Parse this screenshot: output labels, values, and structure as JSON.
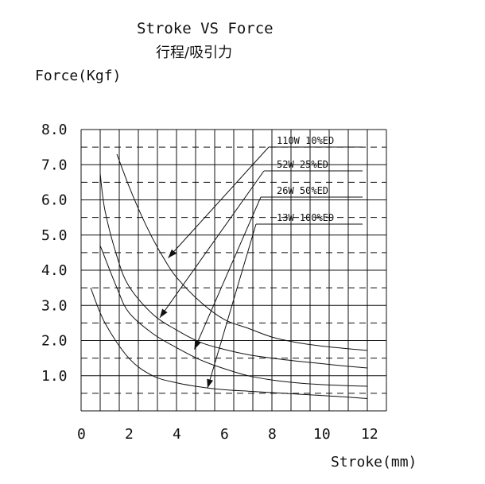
{
  "chart_data": {
    "type": "line",
    "title": "Stroke VS  Force",
    "subtitle": "行程/吸引力",
    "ylabel": "Force(Kgf)",
    "xlabel": "Stroke(mm)",
    "xlim": [
      0,
      12.8
    ],
    "ylim": [
      0,
      8.0
    ],
    "x_ticks": [
      "0",
      "2",
      "4",
      "6",
      "8",
      "10",
      "12"
    ],
    "y_ticks": [
      "8.0",
      "7.0",
      "6.0",
      "5.0",
      "4.0",
      "3.0",
      "2.0",
      "1.0"
    ],
    "grid": true,
    "series": [
      {
        "name": "110W 10%ED",
        "points": [
          [
            1.5,
            7.3
          ],
          [
            2,
            6.4
          ],
          [
            2.5,
            5.6
          ],
          [
            3,
            4.9
          ],
          [
            3.5,
            4.3
          ],
          [
            4,
            3.8
          ],
          [
            5,
            3.1
          ],
          [
            6,
            2.6
          ],
          [
            7,
            2.35
          ],
          [
            8,
            2.1
          ],
          [
            9,
            1.95
          ],
          [
            10,
            1.85
          ],
          [
            11,
            1.78
          ],
          [
            12,
            1.72
          ]
        ]
      },
      {
        "name": "52W 25%ED",
        "points": [
          [
            0.8,
            6.75
          ],
          [
            1,
            5.7
          ],
          [
            1.5,
            4.4
          ],
          [
            2,
            3.55
          ],
          [
            3,
            2.75
          ],
          [
            4,
            2.3
          ],
          [
            5,
            1.95
          ],
          [
            6,
            1.75
          ],
          [
            7,
            1.6
          ],
          [
            8,
            1.5
          ],
          [
            9,
            1.42
          ],
          [
            10,
            1.35
          ],
          [
            11,
            1.28
          ],
          [
            12,
            1.22
          ]
        ]
      },
      {
        "name": "26W  50%ED",
        "points": [
          [
            0.8,
            4.7
          ],
          [
            1.5,
            3.5
          ],
          [
            2,
            2.8
          ],
          [
            3,
            2.2
          ],
          [
            4,
            1.8
          ],
          [
            5,
            1.45
          ],
          [
            6,
            1.2
          ],
          [
            7,
            1.0
          ],
          [
            8,
            0.88
          ],
          [
            9,
            0.8
          ],
          [
            10,
            0.75
          ],
          [
            11,
            0.72
          ],
          [
            12,
            0.7
          ]
        ]
      },
      {
        "name": "13W 100%ED",
        "points": [
          [
            0.4,
            3.5
          ],
          [
            1,
            2.5
          ],
          [
            2,
            1.5
          ],
          [
            3,
            1.0
          ],
          [
            4,
            0.8
          ],
          [
            5,
            0.68
          ],
          [
            6,
            0.6
          ],
          [
            7,
            0.56
          ],
          [
            8,
            0.52
          ],
          [
            9,
            0.48
          ],
          [
            10,
            0.44
          ],
          [
            11,
            0.4
          ],
          [
            12,
            0.35
          ]
        ]
      }
    ],
    "legend": [
      {
        "label": "110W 10%ED",
        "arrow_to": [
          3.65,
          4.35
        ]
      },
      {
        "label": "52W 25%ED",
        "arrow_to": [
          3.3,
          2.65
        ]
      },
      {
        "label": "26W  50%ED",
        "arrow_to": [
          4.75,
          1.75
        ]
      },
      {
        "label": "13W 100%ED",
        "arrow_to": [
          5.3,
          0.65
        ]
      }
    ]
  }
}
